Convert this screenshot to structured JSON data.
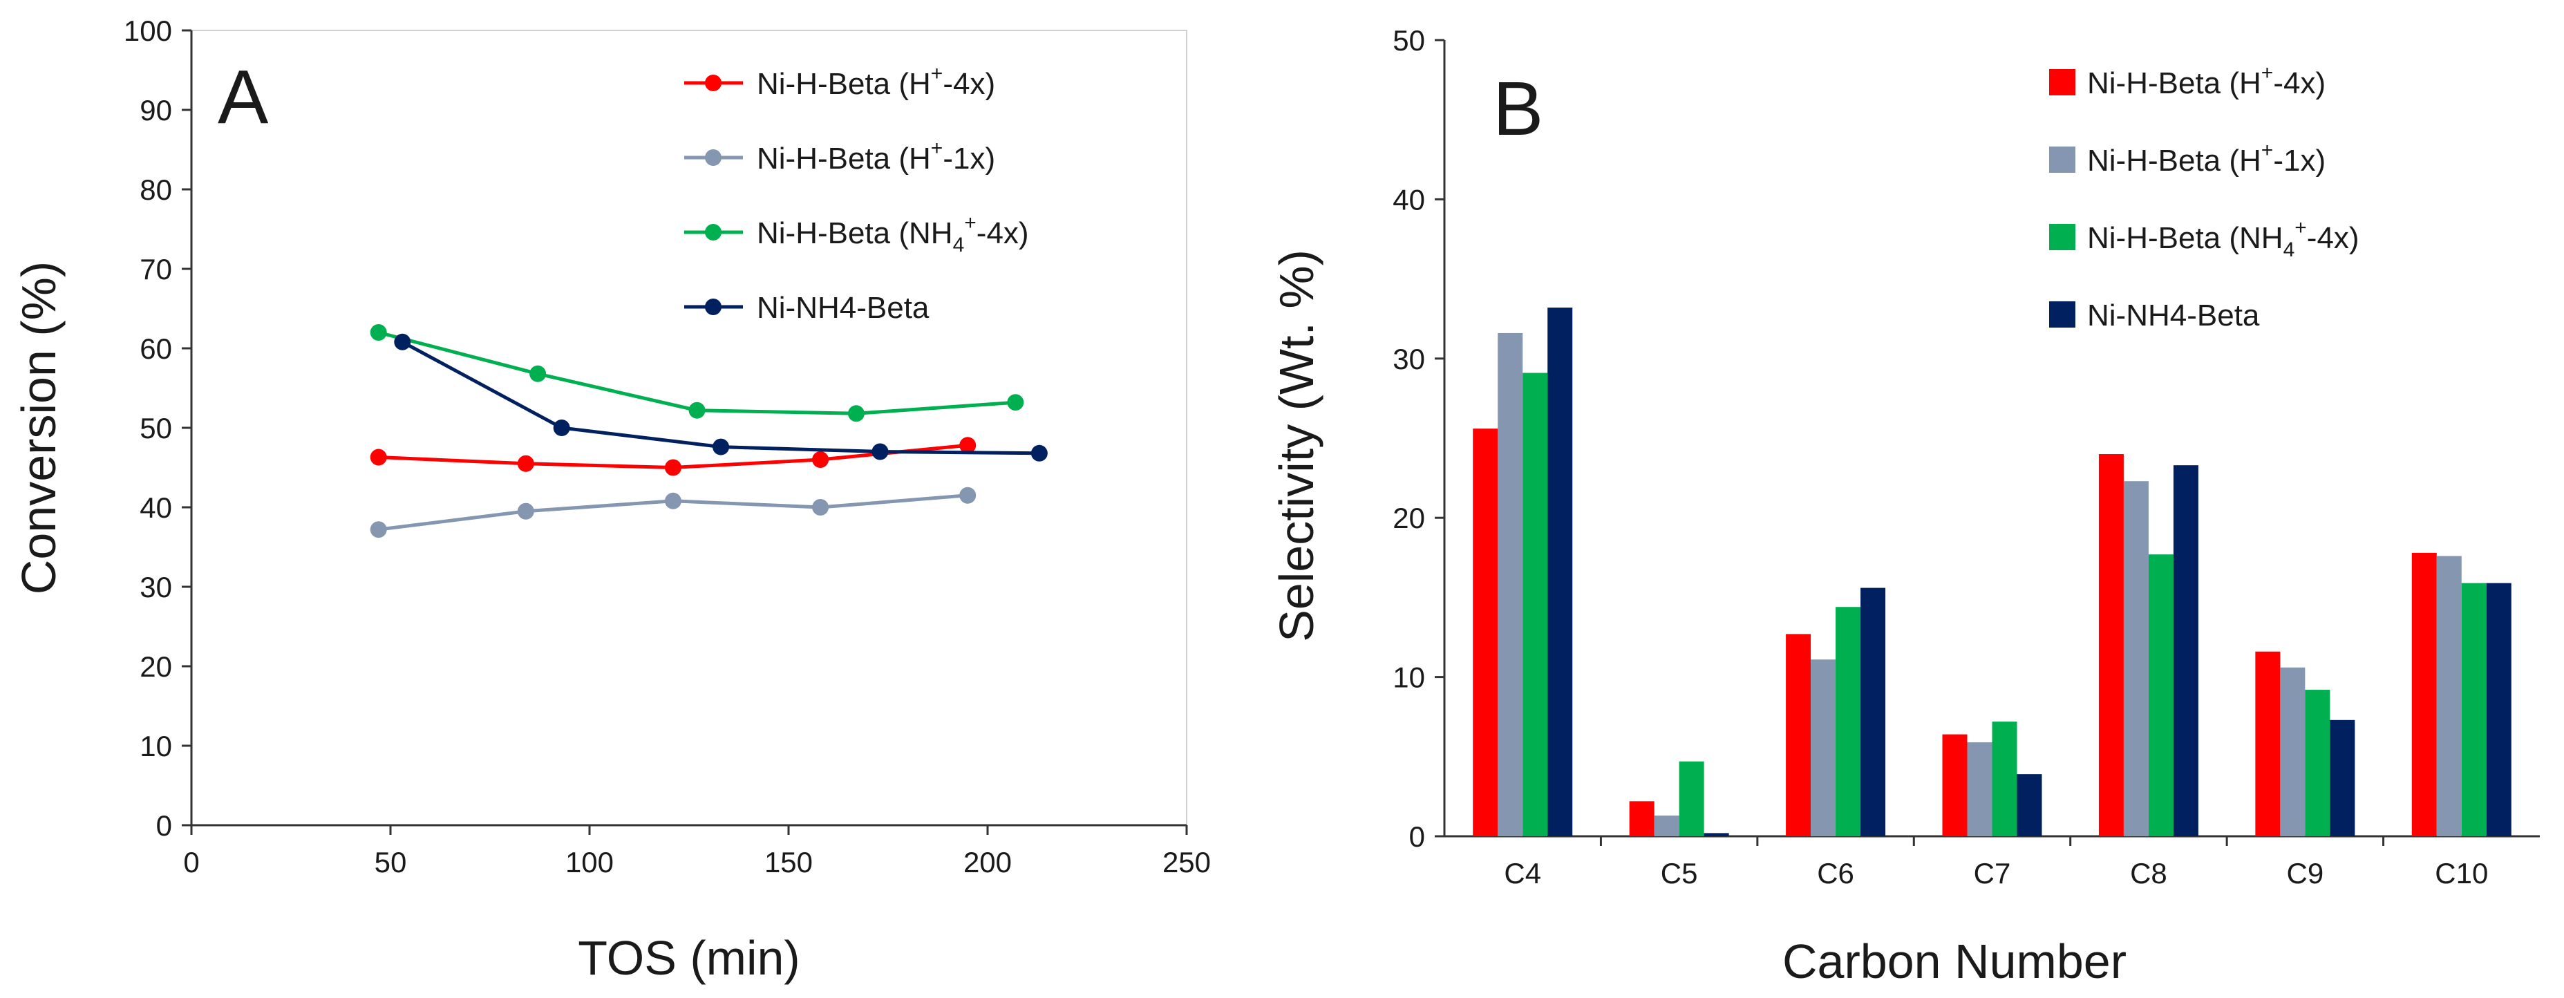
{
  "figure": {
    "panel_a_letter": "A",
    "panel_b_letter": "B"
  },
  "chart_data": [
    {
      "type": "line",
      "panel": "A",
      "title": "",
      "xlabel": "TOS (min)",
      "ylabel": "Conversion (%)",
      "xlim": [
        0,
        250
      ],
      "ylim": [
        0,
        100
      ],
      "xticks": [
        0,
        50,
        100,
        150,
        200,
        250
      ],
      "yticks": [
        0,
        10,
        20,
        30,
        40,
        50,
        60,
        70,
        80,
        90,
        100
      ],
      "grid": false,
      "legend_position": "top-right",
      "series": [
        {
          "name": "Ni-H-Beta (H⁺-4x)",
          "legend_main": "Ni-H-Beta (H",
          "legend_sup": "+",
          "legend_tail": "-4x)",
          "color": "#ff0000",
          "x": [
            47,
            84,
            121,
            158,
            195
          ],
          "y": [
            46.3,
            45.5,
            45.0,
            46.0,
            47.8
          ]
        },
        {
          "name": "Ni-H-Beta (H⁺-1x)",
          "legend_main": "Ni-H-Beta (H",
          "legend_sup": "+",
          "legend_tail": "-1x)",
          "color": "#8496b0",
          "x": [
            47,
            84,
            121,
            158,
            195
          ],
          "y": [
            37.2,
            39.5,
            40.8,
            40.0,
            41.5
          ]
        },
        {
          "name": "Ni-H-Beta (NH₄⁺-4x)",
          "legend_main": "Ni-H-Beta (NH",
          "legend_sub": "4",
          "legend_sup": "+",
          "legend_tail": "-4x)",
          "color": "#00b050",
          "x": [
            47,
            87,
            127,
            167,
            207
          ],
          "y": [
            62.0,
            56.8,
            52.2,
            51.8,
            53.2
          ]
        },
        {
          "name": "Ni-NH4-Beta",
          "legend_main": "Ni-NH4-Beta",
          "color": "#002060",
          "x": [
            53,
            93,
            133,
            173,
            213
          ],
          "y": [
            60.8,
            50.0,
            47.6,
            47.0,
            46.8
          ]
        }
      ]
    },
    {
      "type": "bar",
      "panel": "B",
      "title": "",
      "xlabel": "Carbon Number",
      "ylabel": "Selectivity (Wt. %)",
      "ylim": [
        0,
        50
      ],
      "yticks": [
        0,
        10,
        20,
        30,
        40,
        50
      ],
      "grid": false,
      "legend_position": "top-right",
      "categories": [
        "C4",
        "C5",
        "C6",
        "C7",
        "C8",
        "C9",
        "C10"
      ],
      "series": [
        {
          "name": "Ni-H-Beta (H⁺-4x)",
          "legend_main": "Ni-H-Beta (H",
          "legend_sup": "+",
          "legend_tail": "-4x)",
          "color": "#ff0000",
          "values": [
            25.6,
            2.2,
            12.7,
            6.4,
            24.0,
            11.6,
            17.8
          ]
        },
        {
          "name": "Ni-H-Beta (H⁺-1x)",
          "legend_main": "Ni-H-Beta (H",
          "legend_sup": "+",
          "legend_tail": "-1x)",
          "color": "#8496b0",
          "values": [
            31.6,
            1.3,
            11.1,
            5.9,
            22.3,
            10.6,
            17.6
          ]
        },
        {
          "name": "Ni-H-Beta (NH₄⁺-4x)",
          "legend_main": "Ni-H-Beta (NH",
          "legend_sub": "4",
          "legend_sup": "+",
          "legend_tail": "-4x)",
          "color": "#00b050",
          "values": [
            29.1,
            4.7,
            14.4,
            7.2,
            17.7,
            9.2,
            15.9
          ]
        },
        {
          "name": "Ni-NH4-Beta",
          "legend_main": "Ni-NH4-Beta",
          "color": "#002060",
          "values": [
            33.2,
            0.2,
            15.6,
            3.9,
            23.3,
            7.3,
            15.9
          ]
        }
      ]
    }
  ]
}
